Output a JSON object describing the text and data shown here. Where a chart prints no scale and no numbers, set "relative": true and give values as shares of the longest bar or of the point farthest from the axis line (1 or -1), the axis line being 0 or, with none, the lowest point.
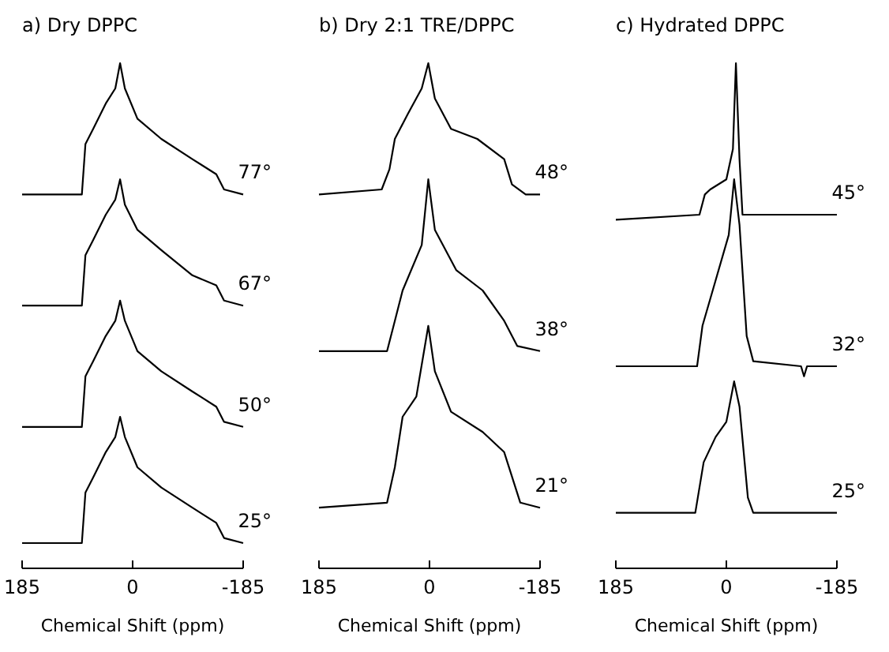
{
  "chart_data": [
    {
      "type": "line",
      "title": "a) Dry DPPC",
      "xlabel": "Chemical Shift (ppm)",
      "relative": true,
      "tick_labels": "x",
      "xlim": [
        185,
        -185
      ],
      "xticks": [
        185,
        0,
        -185
      ],
      "x": [
        185,
        120,
        85,
        79,
        66,
        45,
        29,
        21,
        13,
        -8,
        -48,
        -100,
        -140,
        -153,
        -185
      ],
      "series": [
        {
          "name": "77°",
          "color": "#000000",
          "values": [
            0.74,
            0.74,
            0.74,
            0.84,
            0.87,
            0.92,
            0.95,
            1.0,
            0.95,
            0.89,
            0.85,
            0.81,
            0.78,
            0.75,
            0.74
          ]
        },
        {
          "name": "67°",
          "color": "#000000",
          "values": [
            0.52,
            0.52,
            0.52,
            0.62,
            0.65,
            0.7,
            0.73,
            0.77,
            0.72,
            0.67,
            0.63,
            0.58,
            0.56,
            0.53,
            0.52
          ]
        },
        {
          "name": "50°",
          "color": "#000000",
          "values": [
            0.28,
            0.28,
            0.28,
            0.38,
            0.41,
            0.46,
            0.49,
            0.53,
            0.49,
            0.43,
            0.39,
            0.35,
            0.32,
            0.29,
            0.28
          ]
        },
        {
          "name": "25°",
          "color": "#000000",
          "values": [
            0.05,
            0.05,
            0.05,
            0.15,
            0.18,
            0.23,
            0.26,
            0.3,
            0.26,
            0.2,
            0.16,
            0.12,
            0.09,
            0.06,
            0.05
          ]
        }
      ]
    },
    {
      "type": "line",
      "title": "b) Dry 2:1 TRE/DPPC",
      "xlabel": "Chemical Shift (ppm)",
      "relative": true,
      "tick_labels": "x",
      "xlim": [
        185,
        -185
      ],
      "xticks": [
        185,
        0,
        -185
      ],
      "series": [
        {
          "name": "48°",
          "color": "#000000",
          "x": [
            185,
            80,
            67,
            58,
            36,
            13,
            2,
            -9,
            -36,
            -80,
            -125,
            -138,
            -161,
            -185
          ],
          "values": [
            0.74,
            0.75,
            0.79,
            0.85,
            0.9,
            0.95,
            1.0,
            0.93,
            0.87,
            0.85,
            0.81,
            0.76,
            0.74,
            0.74
          ]
        },
        {
          "name": "38°",
          "color": "#000000",
          "x": [
            185,
            71,
            58,
            45,
            13,
            2,
            -9,
            -45,
            -89,
            -125,
            -147,
            -185
          ],
          "values": [
            0.43,
            0.43,
            0.49,
            0.55,
            0.64,
            0.77,
            0.67,
            0.59,
            0.55,
            0.49,
            0.44,
            0.43
          ]
        },
        {
          "name": "21°",
          "color": "#000000",
          "x": [
            185,
            71,
            58,
            45,
            22,
            2,
            -9,
            -36,
            -89,
            -125,
            -152,
            -185
          ],
          "values": [
            0.12,
            0.13,
            0.2,
            0.3,
            0.34,
            0.48,
            0.39,
            0.31,
            0.27,
            0.23,
            0.13,
            0.12
          ]
        }
      ]
    },
    {
      "type": "line",
      "title": "c) Hydrated DPPC",
      "xlabel": "Chemical Shift (ppm)",
      "relative": true,
      "tick_labels": "x",
      "xlim": [
        185,
        -185
      ],
      "xticks": [
        185,
        0,
        -185
      ],
      "series": [
        {
          "name": "45°",
          "color": "#000000",
          "x": [
            185,
            45,
            36,
            27,
            0,
            -11,
            -16,
            -22,
            -27,
            -36,
            -185
          ],
          "values": [
            0.69,
            0.7,
            0.74,
            0.75,
            0.77,
            0.83,
            1.0,
            0.81,
            0.7,
            0.7,
            0.7
          ]
        },
        {
          "name": "32°",
          "color": "#000000",
          "x": [
            185,
            49,
            40,
            18,
            -4,
            -13,
            -22,
            -34,
            -45,
            -125,
            -130,
            -135,
            -185
          ],
          "values": [
            0.4,
            0.4,
            0.48,
            0.57,
            0.66,
            0.77,
            0.68,
            0.46,
            0.41,
            0.4,
            0.38,
            0.4,
            0.4
          ]
        },
        {
          "name": "25°",
          "color": "#000000",
          "x": [
            185,
            52,
            38,
            18,
            0,
            -13,
            -22,
            -36,
            -45,
            -185
          ],
          "values": [
            0.11,
            0.11,
            0.21,
            0.26,
            0.29,
            0.37,
            0.32,
            0.14,
            0.11,
            0.11
          ]
        }
      ]
    }
  ]
}
